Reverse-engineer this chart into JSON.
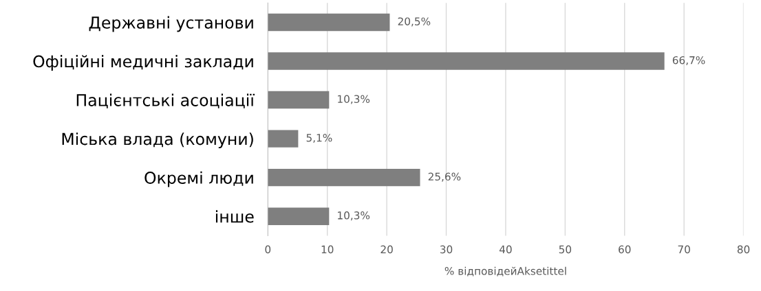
{
  "chart_data": {
    "type": "bar",
    "orientation": "horizontal",
    "categories": [
      "Державні установи",
      "Офіційні медичні заклади",
      "Пацієнтські асоціації",
      "Міська влада (комуни)",
      "Окремі люди",
      "інше"
    ],
    "values": [
      20.5,
      66.7,
      10.3,
      5.1,
      25.6,
      10.3
    ],
    "value_labels": [
      "20,5%",
      "66,7%",
      "10,3%",
      "5,1%",
      "25,6%",
      "10,3%"
    ],
    "color": "#7f7f7f",
    "xlabel": "% відповідейAksetittel",
    "xlim": [
      0,
      80
    ],
    "xticks": [
      0,
      10,
      20,
      30,
      40,
      50,
      60,
      70,
      80
    ],
    "grid": "x",
    "legend": false
  }
}
